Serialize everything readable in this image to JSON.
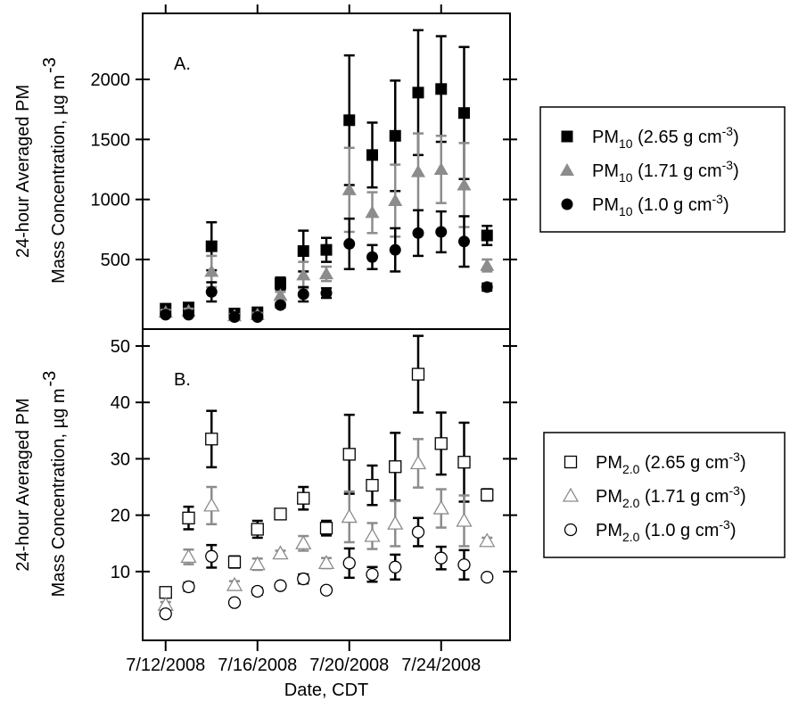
{
  "chart_data": [
    {
      "type": "scatter",
      "annotation": "A.",
      "ylabel": [
        "24-hour Averaged PM",
        "Mass Concentration, µg m"
      ],
      "ylabel_exponent": "-3",
      "x": [
        "7/12/2008",
        "7/13/2008",
        "7/14/2008",
        "7/15/2008",
        "7/16/2008",
        "7/17/2008",
        "7/18/2008",
        "7/19/2008",
        "7/20/2008",
        "7/21/2008",
        "7/22/2008",
        "7/23/2008",
        "7/24/2008",
        "7/25/2008",
        "7/26/2008"
      ],
      "xlim": [
        "7/11/2008",
        "7/27/2008"
      ],
      "ylim": [
        -80,
        2550
      ],
      "yticks": [
        500,
        1000,
        1500,
        2000
      ],
      "legend": "right",
      "series": [
        {
          "name": "PM10 (2.65 g cm-3)",
          "marker": "square",
          "filled": true,
          "color": "#000000",
          "values": [
            90,
            100,
            610,
            50,
            60,
            300,
            570,
            580,
            1660,
            1370,
            1530,
            1890,
            1920,
            1720,
            700
          ],
          "errors": [
            30,
            30,
            200,
            20,
            20,
            50,
            170,
            100,
            540,
            270,
            460,
            520,
            440,
            550,
            80
          ]
        },
        {
          "name": "PM10 (1.71 g cm-3)",
          "marker": "triangle",
          "filled": true,
          "color": "#8c8c8c",
          "values": [
            60,
            70,
            400,
            30,
            40,
            200,
            370,
            380,
            1080,
            890,
            990,
            1230,
            1250,
            1120,
            450
          ],
          "errors": [
            20,
            20,
            130,
            15,
            15,
            30,
            110,
            60,
            350,
            170,
            300,
            320,
            280,
            350,
            50
          ]
        },
        {
          "name": "PM10 (1.0 g cm-3)",
          "marker": "circle",
          "filled": true,
          "color": "#000000",
          "values": [
            40,
            40,
            230,
            20,
            20,
            120,
            210,
            220,
            630,
            520,
            580,
            720,
            730,
            650,
            270
          ],
          "errors": [
            15,
            15,
            80,
            10,
            10,
            20,
            60,
            40,
            210,
            100,
            180,
            190,
            170,
            210,
            30
          ]
        }
      ]
    },
    {
      "type": "scatter",
      "annotation": "B.",
      "ylabel": [
        "24-hour Averaged PM",
        "Mass Concentration, µg m"
      ],
      "ylabel_exponent": "-3",
      "xlabel": "Date, CDT",
      "x": [
        "7/12/2008",
        "7/13/2008",
        "7/14/2008",
        "7/15/2008",
        "7/16/2008",
        "7/17/2008",
        "7/18/2008",
        "7/19/2008",
        "7/20/2008",
        "7/21/2008",
        "7/22/2008",
        "7/23/2008",
        "7/24/2008",
        "7/25/2008",
        "7/26/2008"
      ],
      "xlim": [
        "7/11/2008",
        "7/27/2008"
      ],
      "xticks": [
        "7/12/2008",
        "7/16/2008",
        "7/20/2008",
        "7/24/2008"
      ],
      "ylim": [
        -2.2,
        53
      ],
      "yticks": [
        10,
        20,
        30,
        40,
        50
      ],
      "legend": "right",
      "series": [
        {
          "name": "PM2.0 (2.65 g cm-3)",
          "marker": "square",
          "filled": false,
          "color": "#000000",
          "values": [
            6.3,
            19.5,
            33.5,
            11.7,
            17.5,
            20.2,
            23,
            17.7,
            30.8,
            25.3,
            28.6,
            45,
            32.7,
            29.4,
            23.6
          ],
          "errors": [
            0.6,
            2,
            5,
            1,
            1.5,
            0.6,
            2,
            1.3,
            7,
            3.5,
            6,
            6.8,
            5.5,
            7,
            1
          ]
        },
        {
          "name": "PM2.0 (1.71 g cm-3)",
          "marker": "triangle",
          "filled": false,
          "color": "#8c8c8c",
          "values": [
            4.1,
            12.6,
            21.7,
            7.6,
            11.3,
            13.2,
            15,
            11.5,
            19.7,
            16.3,
            18.5,
            29.2,
            21.2,
            19,
            15.4
          ],
          "errors": [
            0.5,
            1.3,
            3.3,
            0.7,
            1,
            0.5,
            1.3,
            0.9,
            4.5,
            2.3,
            4,
            4.3,
            3.4,
            4.5,
            0.6
          ]
        },
        {
          "name": "PM2.0 (1.0 g cm-3)",
          "marker": "circle",
          "filled": false,
          "color": "#000000",
          "values": [
            2.5,
            7.3,
            12.7,
            4.5,
            6.5,
            7.5,
            8.7,
            6.7,
            11.5,
            9.5,
            10.8,
            17,
            12.4,
            11.2,
            9
          ],
          "errors": [
            0.3,
            0.7,
            2,
            0.4,
            0.6,
            0.3,
            0.8,
            0.5,
            2.6,
            1.3,
            2.2,
            2.5,
            2,
            2.6,
            0.3
          ]
        }
      ]
    }
  ]
}
